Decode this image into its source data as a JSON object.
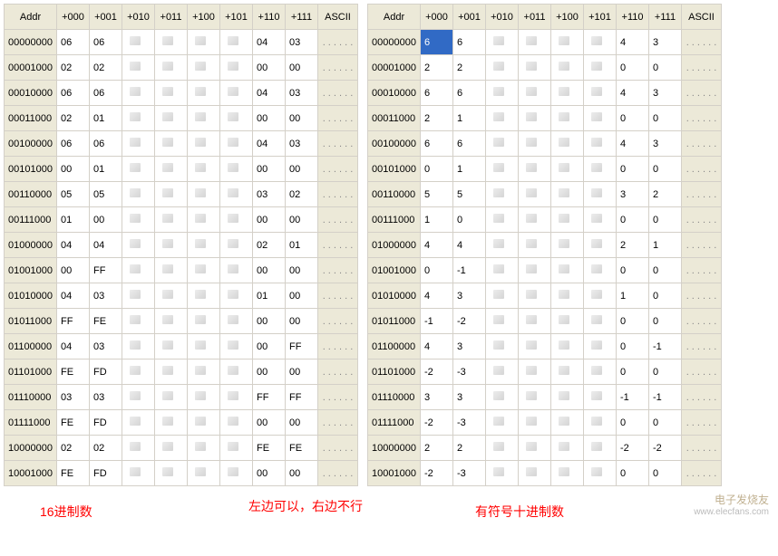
{
  "columns": [
    "Addr",
    "+000",
    "+001",
    "+010",
    "+011",
    "+100",
    "+101",
    "+110",
    "+111",
    "ASCII"
  ],
  "ascii_placeholder": ". . . . . .",
  "selected": {
    "table": 1,
    "row": 0,
    "col": 0
  },
  "left": {
    "addrs": [
      "00000000",
      "00001000",
      "00010000",
      "00011000",
      "00100000",
      "00101000",
      "00110000",
      "00111000",
      "01000000",
      "01001000",
      "01010000",
      "01011000",
      "01100000",
      "01101000",
      "01110000",
      "01111000",
      "10000000",
      "10001000"
    ],
    "rows": [
      [
        "06",
        "06",
        "",
        "",
        "",
        "",
        "04",
        "03"
      ],
      [
        "02",
        "02",
        "",
        "",
        "",
        "",
        "00",
        "00"
      ],
      [
        "06",
        "06",
        "",
        "",
        "",
        "",
        "04",
        "03"
      ],
      [
        "02",
        "01",
        "",
        "",
        "",
        "",
        "00",
        "00"
      ],
      [
        "06",
        "06",
        "",
        "",
        "",
        "",
        "04",
        "03"
      ],
      [
        "00",
        "01",
        "",
        "",
        "",
        "",
        "00",
        "00"
      ],
      [
        "05",
        "05",
        "",
        "",
        "",
        "",
        "03",
        "02"
      ],
      [
        "01",
        "00",
        "",
        "",
        "",
        "",
        "00",
        "00"
      ],
      [
        "04",
        "04",
        "",
        "",
        "",
        "",
        "02",
        "01"
      ],
      [
        "00",
        "FF",
        "",
        "",
        "",
        "",
        "00",
        "00"
      ],
      [
        "04",
        "03",
        "",
        "",
        "",
        "",
        "01",
        "00"
      ],
      [
        "FF",
        "FE",
        "",
        "",
        "",
        "",
        "00",
        "00"
      ],
      [
        "04",
        "03",
        "",
        "",
        "",
        "",
        "00",
        "FF"
      ],
      [
        "FE",
        "FD",
        "",
        "",
        "",
        "",
        "00",
        "00"
      ],
      [
        "03",
        "03",
        "",
        "",
        "",
        "",
        "FF",
        "FF"
      ],
      [
        "FE",
        "FD",
        "",
        "",
        "",
        "",
        "00",
        "00"
      ],
      [
        "02",
        "02",
        "",
        "",
        "",
        "",
        "FE",
        "FE"
      ],
      [
        "FE",
        "FD",
        "",
        "",
        "",
        "",
        "00",
        "00"
      ]
    ]
  },
  "right": {
    "addrs": [
      "00000000",
      "00001000",
      "00010000",
      "00011000",
      "00100000",
      "00101000",
      "00110000",
      "00111000",
      "01000000",
      "01001000",
      "01010000",
      "01011000",
      "01100000",
      "01101000",
      "01110000",
      "01111000",
      "10000000",
      "10001000"
    ],
    "rows": [
      [
        "6",
        "6",
        "",
        "",
        "",
        "",
        "4",
        "3"
      ],
      [
        "2",
        "2",
        "",
        "",
        "",
        "",
        "0",
        "0"
      ],
      [
        "6",
        "6",
        "",
        "",
        "",
        "",
        "4",
        "3"
      ],
      [
        "2",
        "1",
        "",
        "",
        "",
        "",
        "0",
        "0"
      ],
      [
        "6",
        "6",
        "",
        "",
        "",
        "",
        "4",
        "3"
      ],
      [
        "0",
        "1",
        "",
        "",
        "",
        "",
        "0",
        "0"
      ],
      [
        "5",
        "5",
        "",
        "",
        "",
        "",
        "3",
        "2"
      ],
      [
        "1",
        "0",
        "",
        "",
        "",
        "",
        "0",
        "0"
      ],
      [
        "4",
        "4",
        "",
        "",
        "",
        "",
        "2",
        "1"
      ],
      [
        "0",
        "-1",
        "",
        "",
        "",
        "",
        "0",
        "0"
      ],
      [
        "4",
        "3",
        "",
        "",
        "",
        "",
        "1",
        "0"
      ],
      [
        "-1",
        "-2",
        "",
        "",
        "",
        "",
        "0",
        "0"
      ],
      [
        "4",
        "3",
        "",
        "",
        "",
        "",
        "0",
        "-1"
      ],
      [
        "-2",
        "-3",
        "",
        "",
        "",
        "",
        "0",
        "0"
      ],
      [
        "3",
        "3",
        "",
        "",
        "",
        "",
        "-1",
        "-1"
      ],
      [
        "-2",
        "-3",
        "",
        "",
        "",
        "",
        "0",
        "0"
      ],
      [
        "2",
        "2",
        "",
        "",
        "",
        "",
        "-2",
        "-2"
      ],
      [
        "-2",
        "-3",
        "",
        "",
        "",
        "",
        "0",
        "0"
      ]
    ]
  },
  "labels": {
    "left": "16进制数",
    "center": "左边可以，右边不行",
    "right": "有符号十进制数"
  },
  "watermark": {
    "brand": "电子发烧友",
    "url": "www.elecfans.com"
  }
}
